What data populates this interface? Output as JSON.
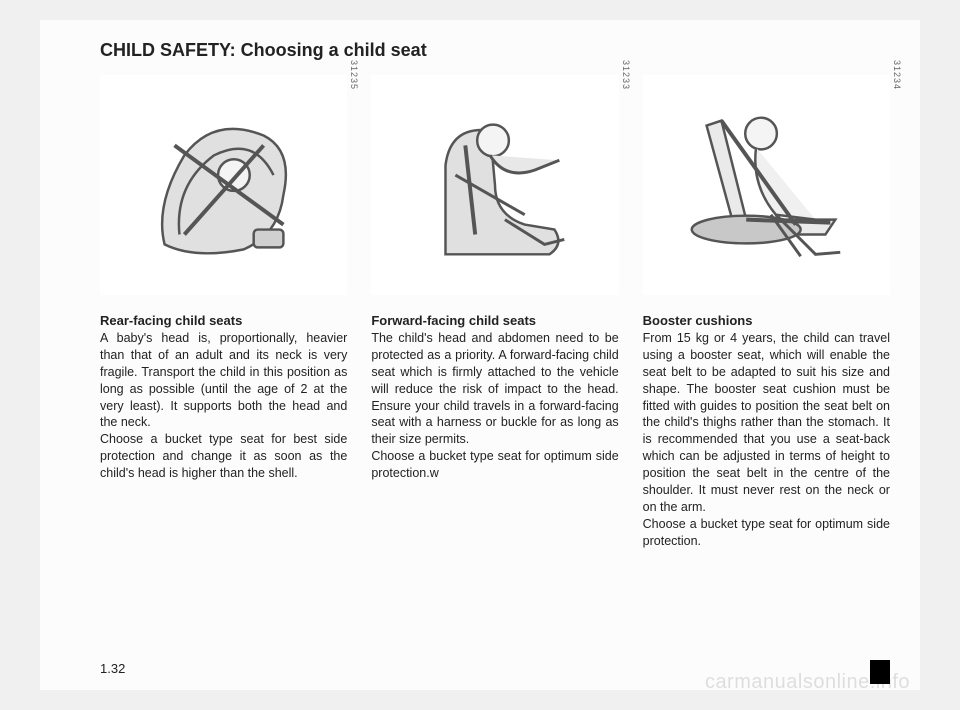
{
  "title": "CHILD SAFETY: Choosing a child seat",
  "page_number": "1.32",
  "watermark": "carmanualsonline.info",
  "columns": [
    {
      "illus_number": "31235",
      "subhead": "Rear-facing child seats",
      "body": "A baby's head is, proportionally, heavier than that of an adult and its neck is very fragile. Transport the child in this position as long as possible (until the age of 2 at the very least). It supports both the head and the neck.\nChoose a bucket type seat for best side protection and change it as soon as the child's head is higher than the shell."
    },
    {
      "illus_number": "31233",
      "subhead": "Forward-facing child seats",
      "body": "The child's head and abdomen need to be protected as a priority. A forward-facing child seat which is firmly attached to the vehicle will reduce the risk of impact to the head. Ensure your child travels in a forward-facing seat with a harness or buckle for as long as their size permits.\nChoose a bucket type seat for optimum side protection.w"
    },
    {
      "illus_number": "31234",
      "subhead": "Booster cushions",
      "body": "From 15 kg or 4 years, the child can travel using a booster seat, which will enable the seat belt to be adapted to suit his size and shape. The booster seat cushion must be fitted with guides to position the seat belt on the child's thighs rather than the stomach. It is recommended that you use a seat-back which can be adjusted in terms of height to position the seat belt in the centre of the shoulder. It must never rest on the neck or on the arm.\nChoose a bucket type seat for optimum side protection."
    }
  ]
}
